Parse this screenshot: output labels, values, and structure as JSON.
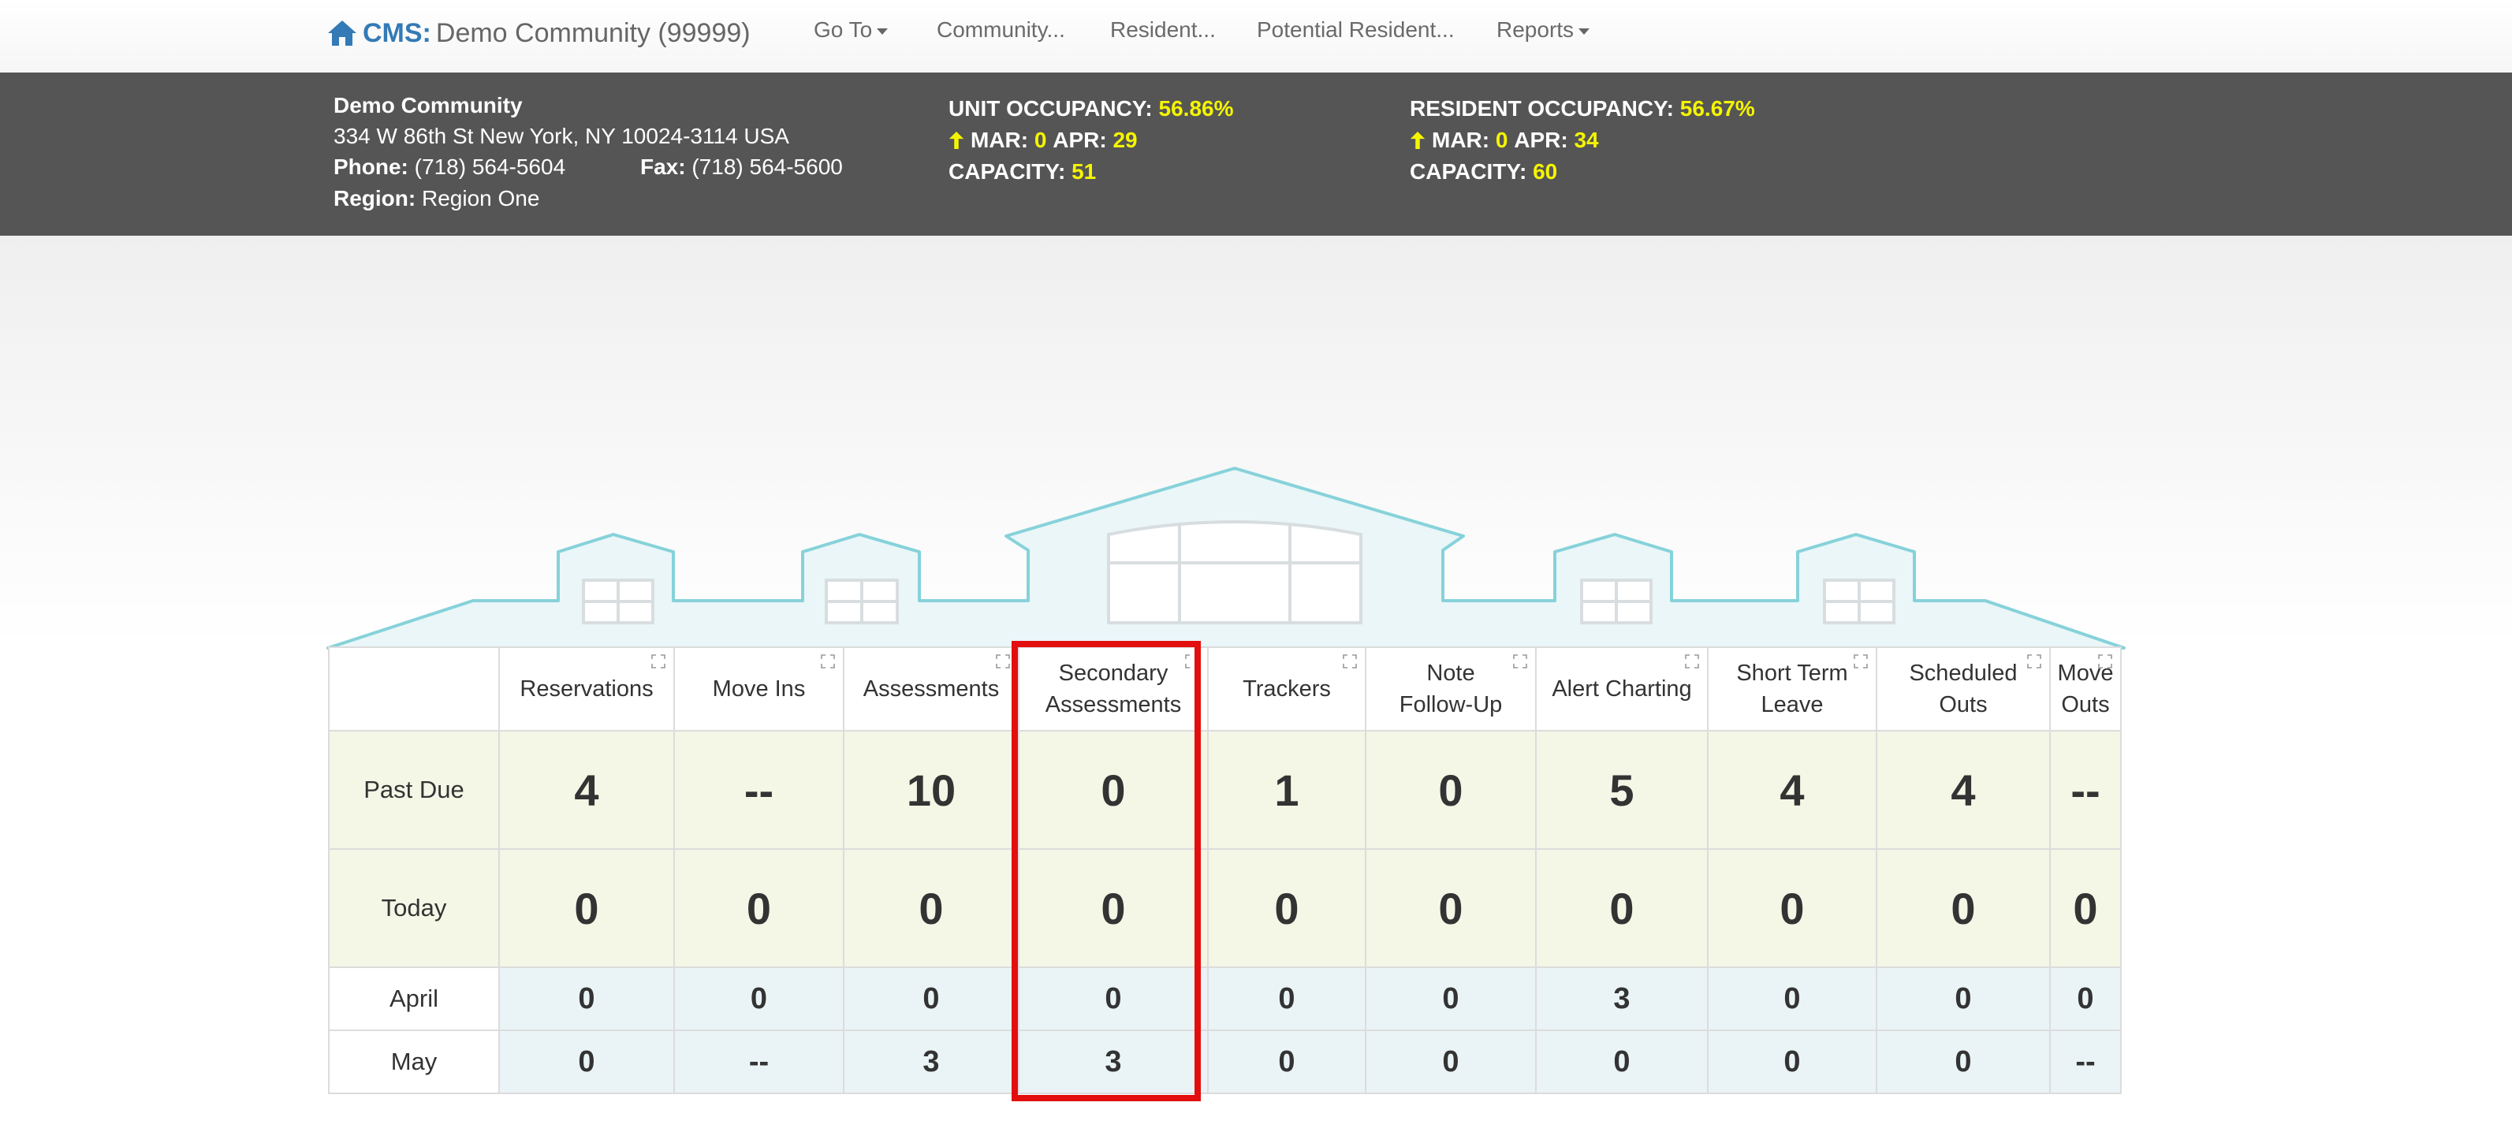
{
  "navbar": {
    "brand_prefix": "CMS:",
    "brand_name": "Demo Community (99999)",
    "items": [
      {
        "label": "Go To",
        "has_caret": true
      },
      {
        "label": "Community...",
        "has_caret": false
      },
      {
        "label": "Resident...",
        "has_caret": false
      },
      {
        "label": "Potential Resident...",
        "has_caret": false
      },
      {
        "label": "Reports",
        "has_caret": true
      }
    ]
  },
  "community": {
    "name": "Demo Community",
    "address": "334 W 86th St New York, NY 10024-3114 USA",
    "phone_label": "Phone:",
    "phone": "(718) 564-5604",
    "fax_label": "Fax:",
    "fax": "(718) 564-5600",
    "region_label": "Region:",
    "region": "Region One"
  },
  "unit_occupancy": {
    "label": "UNIT OCCUPANCY:",
    "value": "56.86%",
    "mar_label": "MAR:",
    "mar": "0",
    "apr_label": "APR:",
    "apr": "29",
    "capacity_label": "CAPACITY:",
    "capacity": "51"
  },
  "resident_occupancy": {
    "label": "RESIDENT OCCUPANCY:",
    "value": "56.67%",
    "mar_label": "MAR:",
    "mar": "0",
    "apr_label": "APR:",
    "apr": "34",
    "capacity_label": "CAPACITY:",
    "capacity": "60"
  },
  "table": {
    "columns": [
      [
        "Reservations"
      ],
      [
        "Move Ins"
      ],
      [
        "Assessments"
      ],
      [
        "Secondary",
        "Assessments"
      ],
      [
        "Trackers"
      ],
      [
        "Note",
        "Follow-Up"
      ],
      [
        "Alert Charting"
      ],
      [
        "Short Term",
        "Leave"
      ],
      [
        "Scheduled",
        "Outs"
      ],
      [
        "Move",
        "Outs"
      ]
    ],
    "rows": [
      {
        "label": "Past Due",
        "values": [
          "4",
          "--",
          "10",
          "0",
          "1",
          "0",
          "5",
          "4",
          "4",
          "--"
        ]
      },
      {
        "label": "Today",
        "values": [
          "0",
          "0",
          "0",
          "0",
          "0",
          "0",
          "0",
          "0",
          "0",
          "0"
        ]
      },
      {
        "label": "April",
        "values": [
          "0",
          "0",
          "0",
          "0",
          "0",
          "0",
          "3",
          "0",
          "0",
          "0"
        ]
      },
      {
        "label": "May",
        "values": [
          "0",
          "--",
          "3",
          "3",
          "0",
          "0",
          "0",
          "0",
          "0",
          "--"
        ]
      }
    ]
  },
  "colors": {
    "brand_blue": "#337ab7",
    "infobar_bg": "#555555",
    "highlight_value": "#f5f500",
    "selection_box": "#e30e0e",
    "house_stroke": "#86d2da",
    "house_fill": "#eaf6f8"
  },
  "icons": {
    "brand": "home-icon",
    "trend": "arrow-up-icon",
    "column": "expand-icon"
  }
}
